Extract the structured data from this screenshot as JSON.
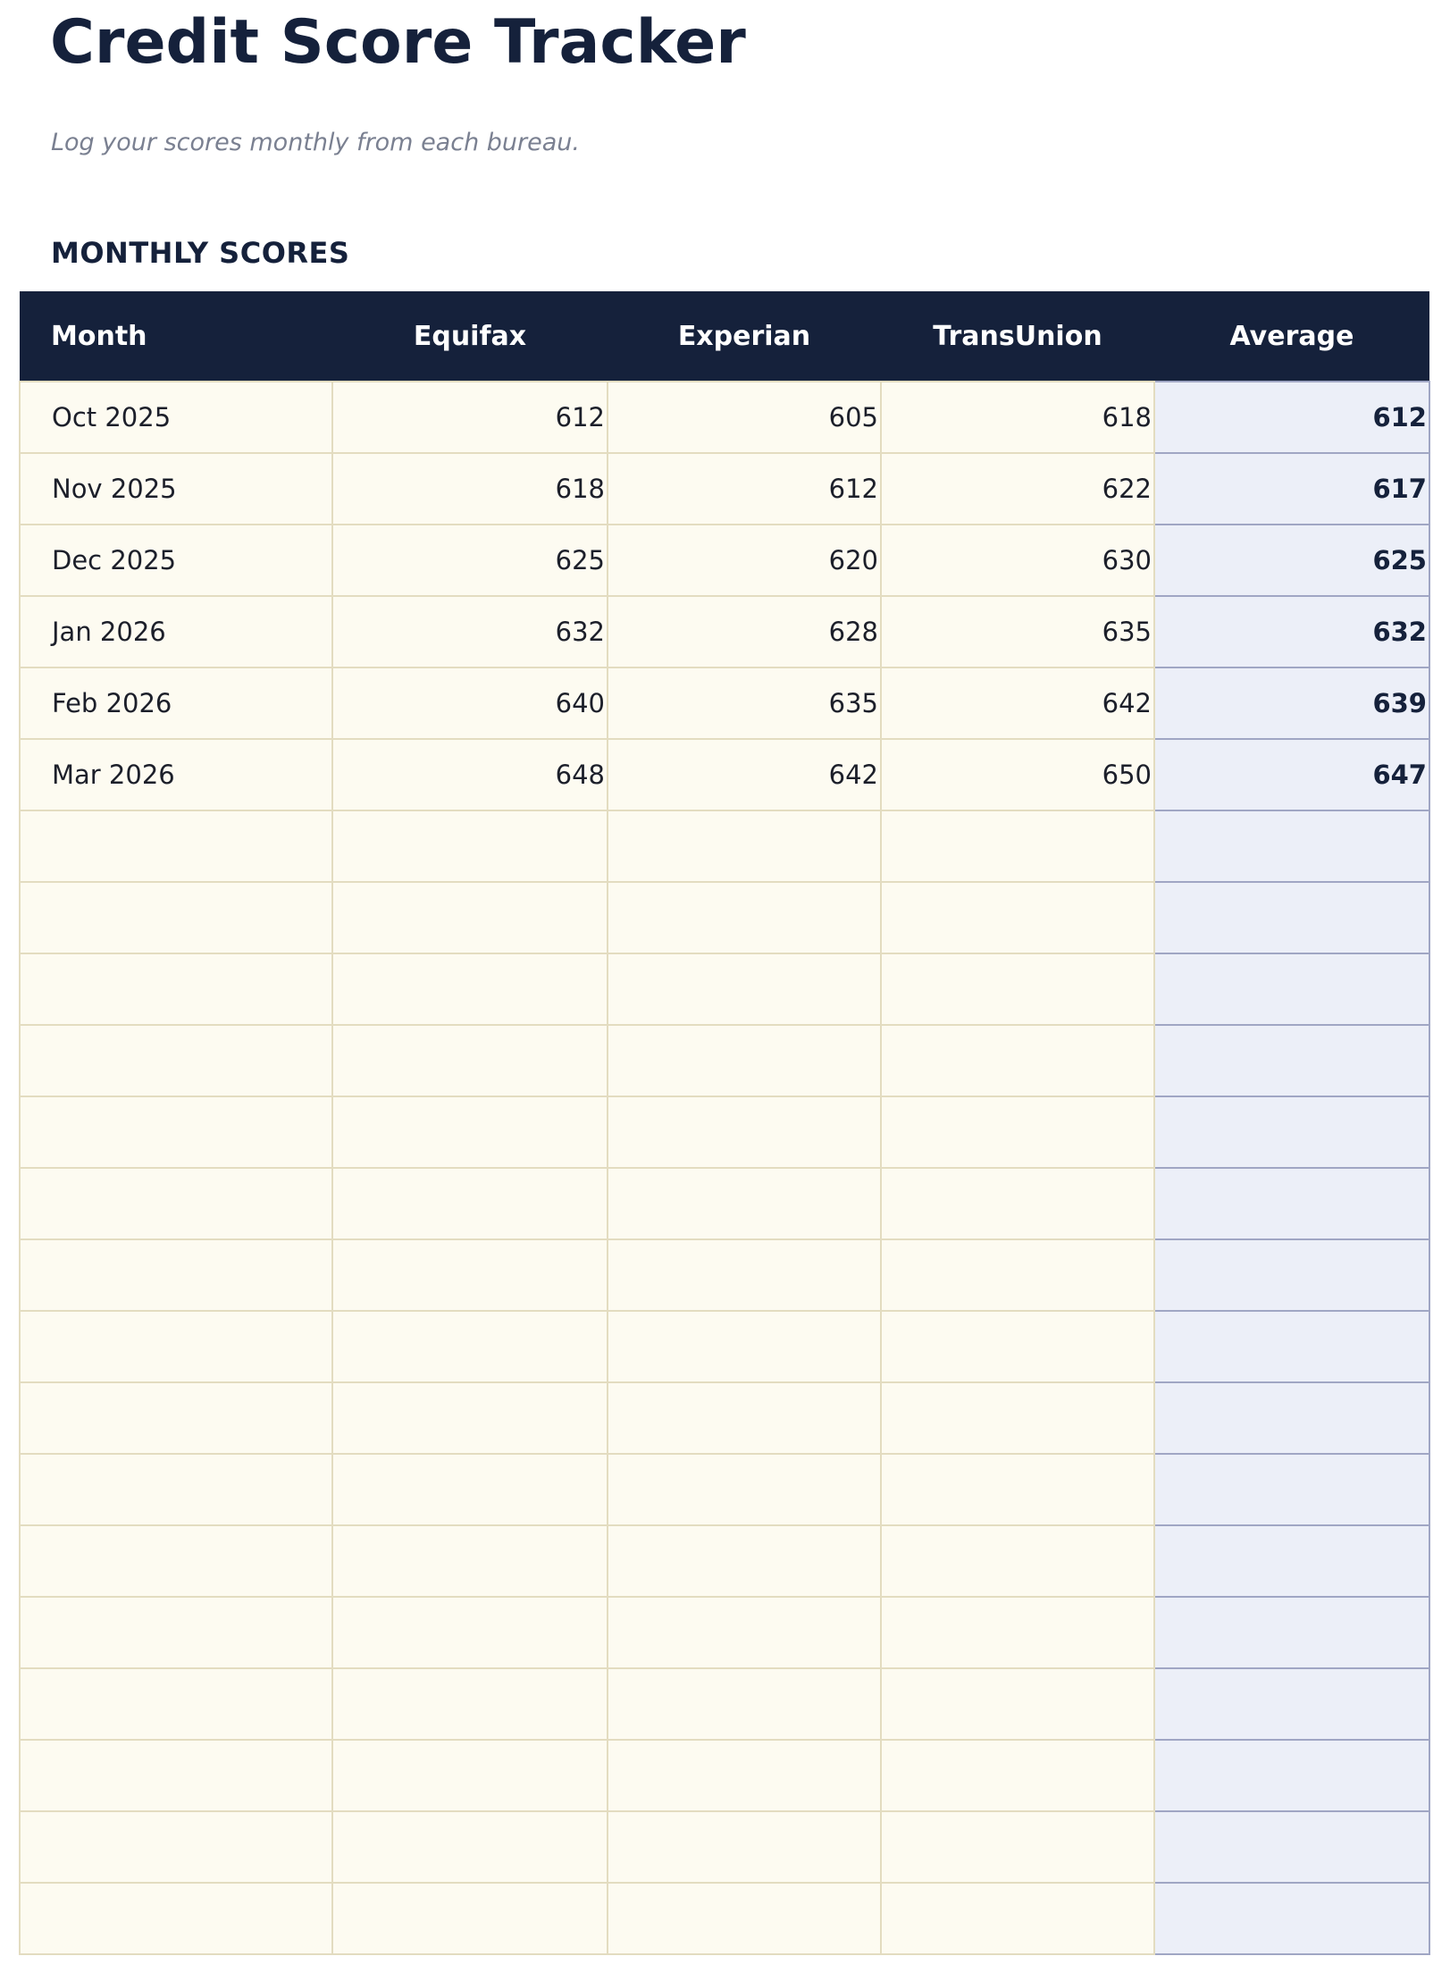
{
  "header": {
    "title": "Credit Score Tracker",
    "subtitle": "Log your scores monthly from each bureau.",
    "section": "MONTHLY SCORES"
  },
  "table": {
    "headers": [
      "Month",
      "Equifax",
      "Experian",
      "TransUnion",
      "Average"
    ],
    "rows": [
      [
        "Oct 2025",
        612,
        605,
        618,
        612
      ],
      [
        "Nov 2025",
        618,
        612,
        622,
        617
      ],
      [
        "Dec 2025",
        625,
        620,
        630,
        625
      ],
      [
        "Jan 2026",
        632,
        628,
        635,
        632
      ],
      [
        "Feb 2026",
        640,
        635,
        642,
        639
      ],
      [
        "Mar 2026",
        648,
        642,
        650,
        647
      ]
    ]
  }
}
